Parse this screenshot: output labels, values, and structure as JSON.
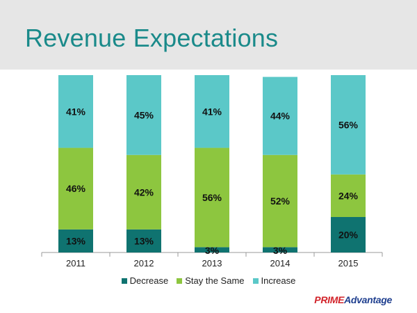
{
  "title": "Revenue Expectations",
  "logo": {
    "part1": "PRIME",
    "part2": "Advantage"
  },
  "colors": {
    "decrease": "#0f7370",
    "stay": "#8dc63f",
    "increase": "#5bc8c8",
    "title": "#1a8a8a"
  },
  "chart_data": {
    "type": "bar",
    "stacked": true,
    "categories": [
      "2011",
      "2012",
      "2013",
      "2014",
      "2015"
    ],
    "series": [
      {
        "name": "Decrease",
        "values": [
          13,
          13,
          3,
          3,
          20
        ],
        "color": "#0f7370"
      },
      {
        "name": "Stay the Same",
        "values": [
          46,
          42,
          56,
          52,
          24
        ],
        "color": "#8dc63f"
      },
      {
        "name": "Increase",
        "values": [
          41,
          45,
          41,
          44,
          56
        ],
        "color": "#5bc8c8"
      }
    ],
    "value_format": "percent",
    "ylim": [
      0,
      100
    ],
    "legend_position": "bottom",
    "grid": false
  }
}
